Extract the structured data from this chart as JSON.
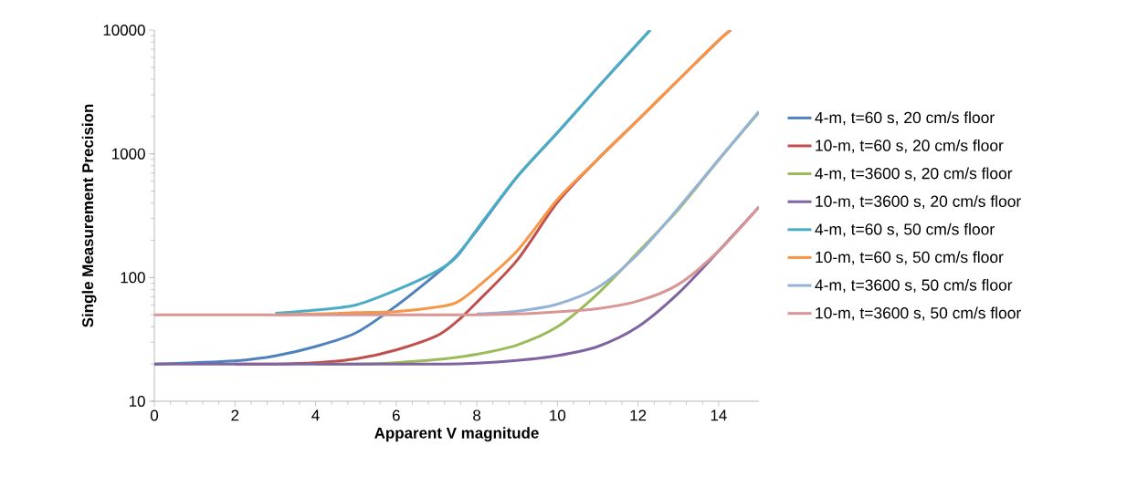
{
  "chart_data": {
    "type": "line",
    "xlabel": "Apparent V magnitude",
    "ylabel": "Single Measurement Precision",
    "log": "y",
    "xlim": [
      0,
      15
    ],
    "xticks": [
      0,
      2,
      4,
      6,
      8,
      10,
      12,
      14
    ],
    "ylim": [
      10,
      10000
    ],
    "yticks": [
      10,
      100,
      1000,
      10000
    ],
    "grid": false,
    "legend": "right",
    "marker": "none",
    "line_style": "solid",
    "series": [
      {
        "name": "4-m, t=60 s, 20 cm/s floor",
        "color": "#4f81bd",
        "x": [
          0,
          1,
          2,
          3,
          4,
          5,
          6,
          7,
          7.5,
          8,
          9,
          10,
          11,
          12,
          12.3
        ],
        "values": [
          20,
          20.5,
          21.2,
          23.3,
          27.7,
          35.7,
          59,
          107,
          150,
          240,
          650,
          1480,
          3440,
          7830,
          10000
        ]
      },
      {
        "name": "10-m, t=60 s, 20 cm/s floor",
        "color": "#c0504d",
        "x": [
          2,
          3,
          4,
          5,
          6,
          7,
          7.5,
          8,
          9,
          10,
          11,
          12,
          13,
          14,
          14.3
        ],
        "values": [
          20,
          20,
          20.5,
          22,
          26,
          33.7,
          44,
          63,
          138,
          405,
          903,
          1880,
          3950,
          8250,
          10000
        ]
      },
      {
        "name": "4-m, t=3600 s, 20 cm/s floor",
        "color": "#9bbb59",
        "x": [
          4,
          5,
          6,
          7,
          8,
          9,
          10,
          11,
          12,
          13,
          14,
          15
        ],
        "values": [
          20,
          20,
          20.5,
          21.7,
          24,
          28.5,
          40,
          74,
          160,
          355,
          890,
          2160
        ]
      },
      {
        "name": "10-m, t=3600 s, 20 cm/s floor",
        "color": "#8064a2",
        "x": [
          0,
          1,
          2,
          3,
          4,
          5,
          6,
          7,
          8,
          9,
          10,
          11,
          12,
          13,
          14,
          15
        ],
        "values": [
          20,
          20,
          20,
          20,
          20,
          20,
          20,
          20,
          20.3,
          21.4,
          23.4,
          27.7,
          40,
          74.5,
          164,
          372
        ]
      },
      {
        "name": "4-m, t=60 s, 50 cm/s floor",
        "color": "#4bacc6",
        "x": [
          3,
          4,
          5,
          6,
          7,
          7.5,
          8,
          9,
          10,
          11,
          12,
          12.3
        ],
        "values": [
          51.5,
          54.6,
          60,
          79,
          112,
          147,
          245,
          655,
          1480,
          3440,
          7830,
          10000
        ]
      },
      {
        "name": "10-m, t=60 s, 50 cm/s floor",
        "color": "#f79646",
        "x": [
          3,
          4,
          5,
          6,
          7,
          7.5,
          8,
          9,
          10,
          11,
          12,
          13,
          14,
          14.3
        ],
        "values": [
          50,
          50.7,
          52,
          53,
          57.6,
          63,
          83,
          164,
          428,
          903,
          1880,
          3950,
          8250,
          10000
        ]
      },
      {
        "name": "4-m, t=3600 s, 50 cm/s floor",
        "color": "#95b3d7",
        "x": [
          8,
          9,
          10,
          11,
          12,
          13,
          14,
          15
        ],
        "values": [
          50.7,
          53.5,
          61,
          83,
          155,
          364,
          898,
          2200
        ]
      },
      {
        "name": "10-m, t=3600 s, 50 cm/s floor",
        "color": "#d99694",
        "x": [
          0,
          1,
          2,
          3,
          4,
          5,
          6,
          7,
          8,
          9,
          10,
          11,
          12,
          13,
          14,
          15
        ],
        "values": [
          50,
          50,
          50,
          50,
          50,
          50,
          50,
          50,
          50,
          50.7,
          52.8,
          56,
          64.5,
          88,
          164,
          372
        ]
      }
    ]
  }
}
